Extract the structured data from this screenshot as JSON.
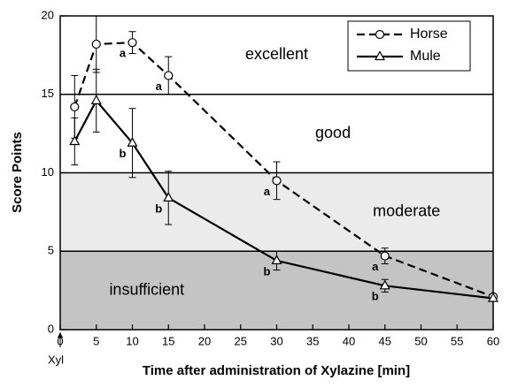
{
  "chart_data": {
    "type": "line",
    "xlabel": "Time after administration of Xylazine [min]",
    "ylabel": "Score Points",
    "x_marker": {
      "value": 0,
      "label": "Xyl"
    },
    "xlim": [
      0,
      60
    ],
    "xticks": [
      0,
      5,
      10,
      15,
      20,
      25,
      30,
      35,
      40,
      45,
      50,
      55,
      60
    ],
    "ylim": [
      0,
      20
    ],
    "yticks": [
      0,
      5,
      10,
      15,
      20
    ],
    "legend": "upper right",
    "zones": [
      {
        "label": "insufficient",
        "from": 0,
        "to": 5,
        "color": "#c4c4c4"
      },
      {
        "label": "moderate",
        "from": 5,
        "to": 10,
        "color": "#ebebeb"
      },
      {
        "label": "good",
        "from": 10,
        "to": 15,
        "color": "#ffffff"
      },
      {
        "label": "excellent",
        "from": 15,
        "to": 20,
        "color": "#ffffff"
      }
    ],
    "series": [
      {
        "name": "Horse",
        "color": "#000000",
        "dash": true,
        "marker": "circle",
        "x": [
          2,
          5,
          10,
          15,
          30,
          45,
          60
        ],
        "values": [
          14.2,
          18.2,
          18.3,
          16.2,
          9.5,
          4.7,
          2.1
        ],
        "errors": [
          2.0,
          1.8,
          0.7,
          1.2,
          1.2,
          0.5,
          0
        ],
        "annotations": [
          null,
          null,
          "a",
          "a",
          "a",
          "a",
          null
        ]
      },
      {
        "name": "Mule",
        "color": "#000000",
        "dash": false,
        "marker": "triangle",
        "x": [
          2,
          5,
          10,
          15,
          30,
          45,
          60
        ],
        "values": [
          12.0,
          14.6,
          11.9,
          8.4,
          4.4,
          2.8,
          2.0
        ],
        "errors": [
          1.5,
          2.0,
          2.2,
          1.7,
          0.6,
          0.4,
          0
        ],
        "annotations": [
          null,
          null,
          "b",
          "b",
          "b",
          "b",
          null
        ]
      }
    ]
  }
}
